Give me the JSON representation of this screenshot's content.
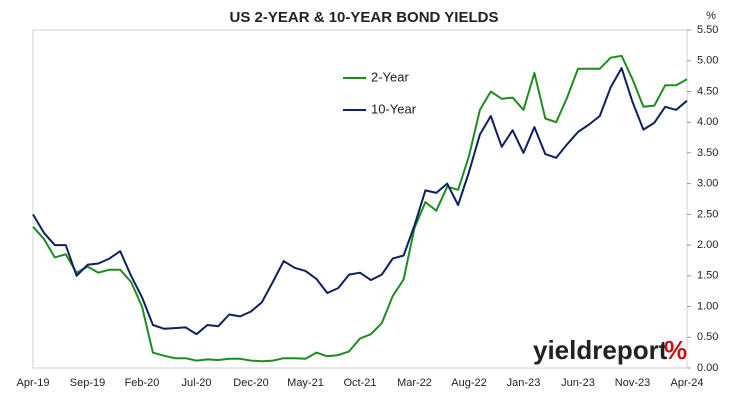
{
  "chart_data": {
    "type": "line",
    "title": "US 2-YEAR & 10-YEAR BOND YIELDS",
    "y_unit": "%",
    "logo": "yieldreport",
    "logo_symbol": "%",
    "categories": [
      "Apr-19",
      null,
      null,
      null,
      null,
      "Sep-19",
      null,
      null,
      null,
      null,
      "Feb-20",
      null,
      null,
      null,
      null,
      "Jul-20",
      null,
      null,
      null,
      null,
      "Dec-20",
      null,
      null,
      null,
      null,
      "May-21",
      null,
      null,
      null,
      null,
      "Oct-21",
      null,
      null,
      null,
      null,
      "Mar-22",
      null,
      null,
      null,
      null,
      "Aug-22",
      null,
      null,
      null,
      null,
      "Jan-23",
      null,
      null,
      null,
      null,
      "Jun-23",
      null,
      null,
      null,
      null,
      "Nov-23",
      null,
      null,
      null,
      null,
      "Apr-24"
    ],
    "series": [
      {
        "name": "2-Year",
        "color": "#1e8c1e",
        "values": [
          2.3,
          2.1,
          1.8,
          1.85,
          1.55,
          1.65,
          1.55,
          1.6,
          1.6,
          1.4,
          1.0,
          0.25,
          0.2,
          0.16,
          0.16,
          0.12,
          0.14,
          0.13,
          0.15,
          0.15,
          0.12,
          0.11,
          0.12,
          0.16,
          0.16,
          0.15,
          0.25,
          0.19,
          0.21,
          0.27,
          0.48,
          0.55,
          0.73,
          1.17,
          1.44,
          2.28,
          2.7,
          2.56,
          2.95,
          2.9,
          3.45,
          4.2,
          4.5,
          4.38,
          4.4,
          4.2,
          4.8,
          4.06,
          4.0,
          4.4,
          4.87,
          4.87,
          4.87,
          5.05,
          5.08,
          4.7,
          4.25,
          4.27,
          4.6,
          4.6,
          4.7
        ]
      },
      {
        "name": "10-Year",
        "color": "#0d2060",
        "values": [
          2.5,
          2.2,
          2.0,
          2.0,
          1.5,
          1.68,
          1.7,
          1.78,
          1.9,
          1.5,
          1.15,
          0.7,
          0.64,
          0.65,
          0.66,
          0.55,
          0.7,
          0.68,
          0.87,
          0.84,
          0.92,
          1.07,
          1.4,
          1.74,
          1.63,
          1.58,
          1.45,
          1.22,
          1.3,
          1.52,
          1.55,
          1.43,
          1.52,
          1.78,
          1.83,
          2.32,
          2.89,
          2.85,
          3.0,
          2.65,
          3.19,
          3.8,
          4.1,
          3.6,
          3.87,
          3.5,
          3.92,
          3.48,
          3.42,
          3.64,
          3.84,
          3.96,
          4.1,
          4.57,
          4.88,
          4.33,
          3.88,
          3.99,
          4.25,
          4.2,
          4.35
        ]
      }
    ],
    "ylim": [
      0,
      5.5
    ],
    "yticks": [
      {
        "value": 0,
        "label": "0.00"
      },
      {
        "value": 0.5,
        "label": "0.50"
      },
      {
        "value": 1,
        "label": "1.00"
      },
      {
        "value": 1.5,
        "label": "1.50"
      },
      {
        "value": 2,
        "label": "2.00"
      },
      {
        "value": 2.5,
        "label": "2.50"
      },
      {
        "value": 3,
        "label": "3.00"
      },
      {
        "value": 3.5,
        "label": "3.50"
      },
      {
        "value": 4,
        "label": "4.00"
      },
      {
        "value": 4.5,
        "label": "4.50"
      },
      {
        "value": 5,
        "label": "5.00"
      },
      {
        "value": 5.5,
        "label": "5.50"
      }
    ],
    "grid": false
  }
}
